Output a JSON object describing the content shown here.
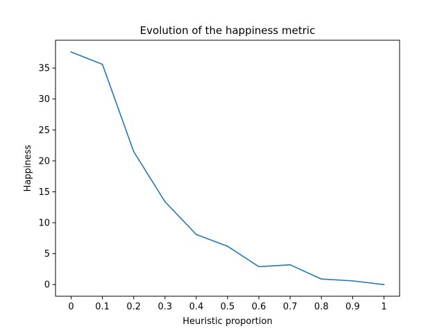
{
  "chart_data": {
    "type": "line",
    "title": "Evolution of the happiness metric",
    "xlabel": "Heuristic proportion",
    "ylabel": "Happiness",
    "x": [
      0,
      0.1,
      0.2,
      0.3,
      0.4,
      0.5,
      0.6,
      0.7,
      0.8,
      0.9,
      1
    ],
    "x_tick_labels": [
      "0",
      "0.1",
      "0.2",
      "0.3",
      "0.4",
      "0.5",
      "0.6",
      "0.7",
      "0.8",
      "0.9",
      "1"
    ],
    "y_ticks": [
      0,
      5,
      10,
      15,
      20,
      25,
      30,
      35
    ],
    "y_tick_labels": [
      "0",
      "5",
      "10",
      "15",
      "20",
      "25",
      "30",
      "35"
    ],
    "xlim": [
      -0.05,
      1.05
    ],
    "ylim": [
      -1.88,
      39.5
    ],
    "grid": false,
    "legend": "none",
    "series": [
      {
        "values": [
          37.6,
          35.6,
          21.5,
          13.4,
          8.1,
          6.2,
          2.9,
          3.2,
          0.9,
          0.6,
          0.0
        ],
        "color": "#1f77b4"
      }
    ]
  }
}
